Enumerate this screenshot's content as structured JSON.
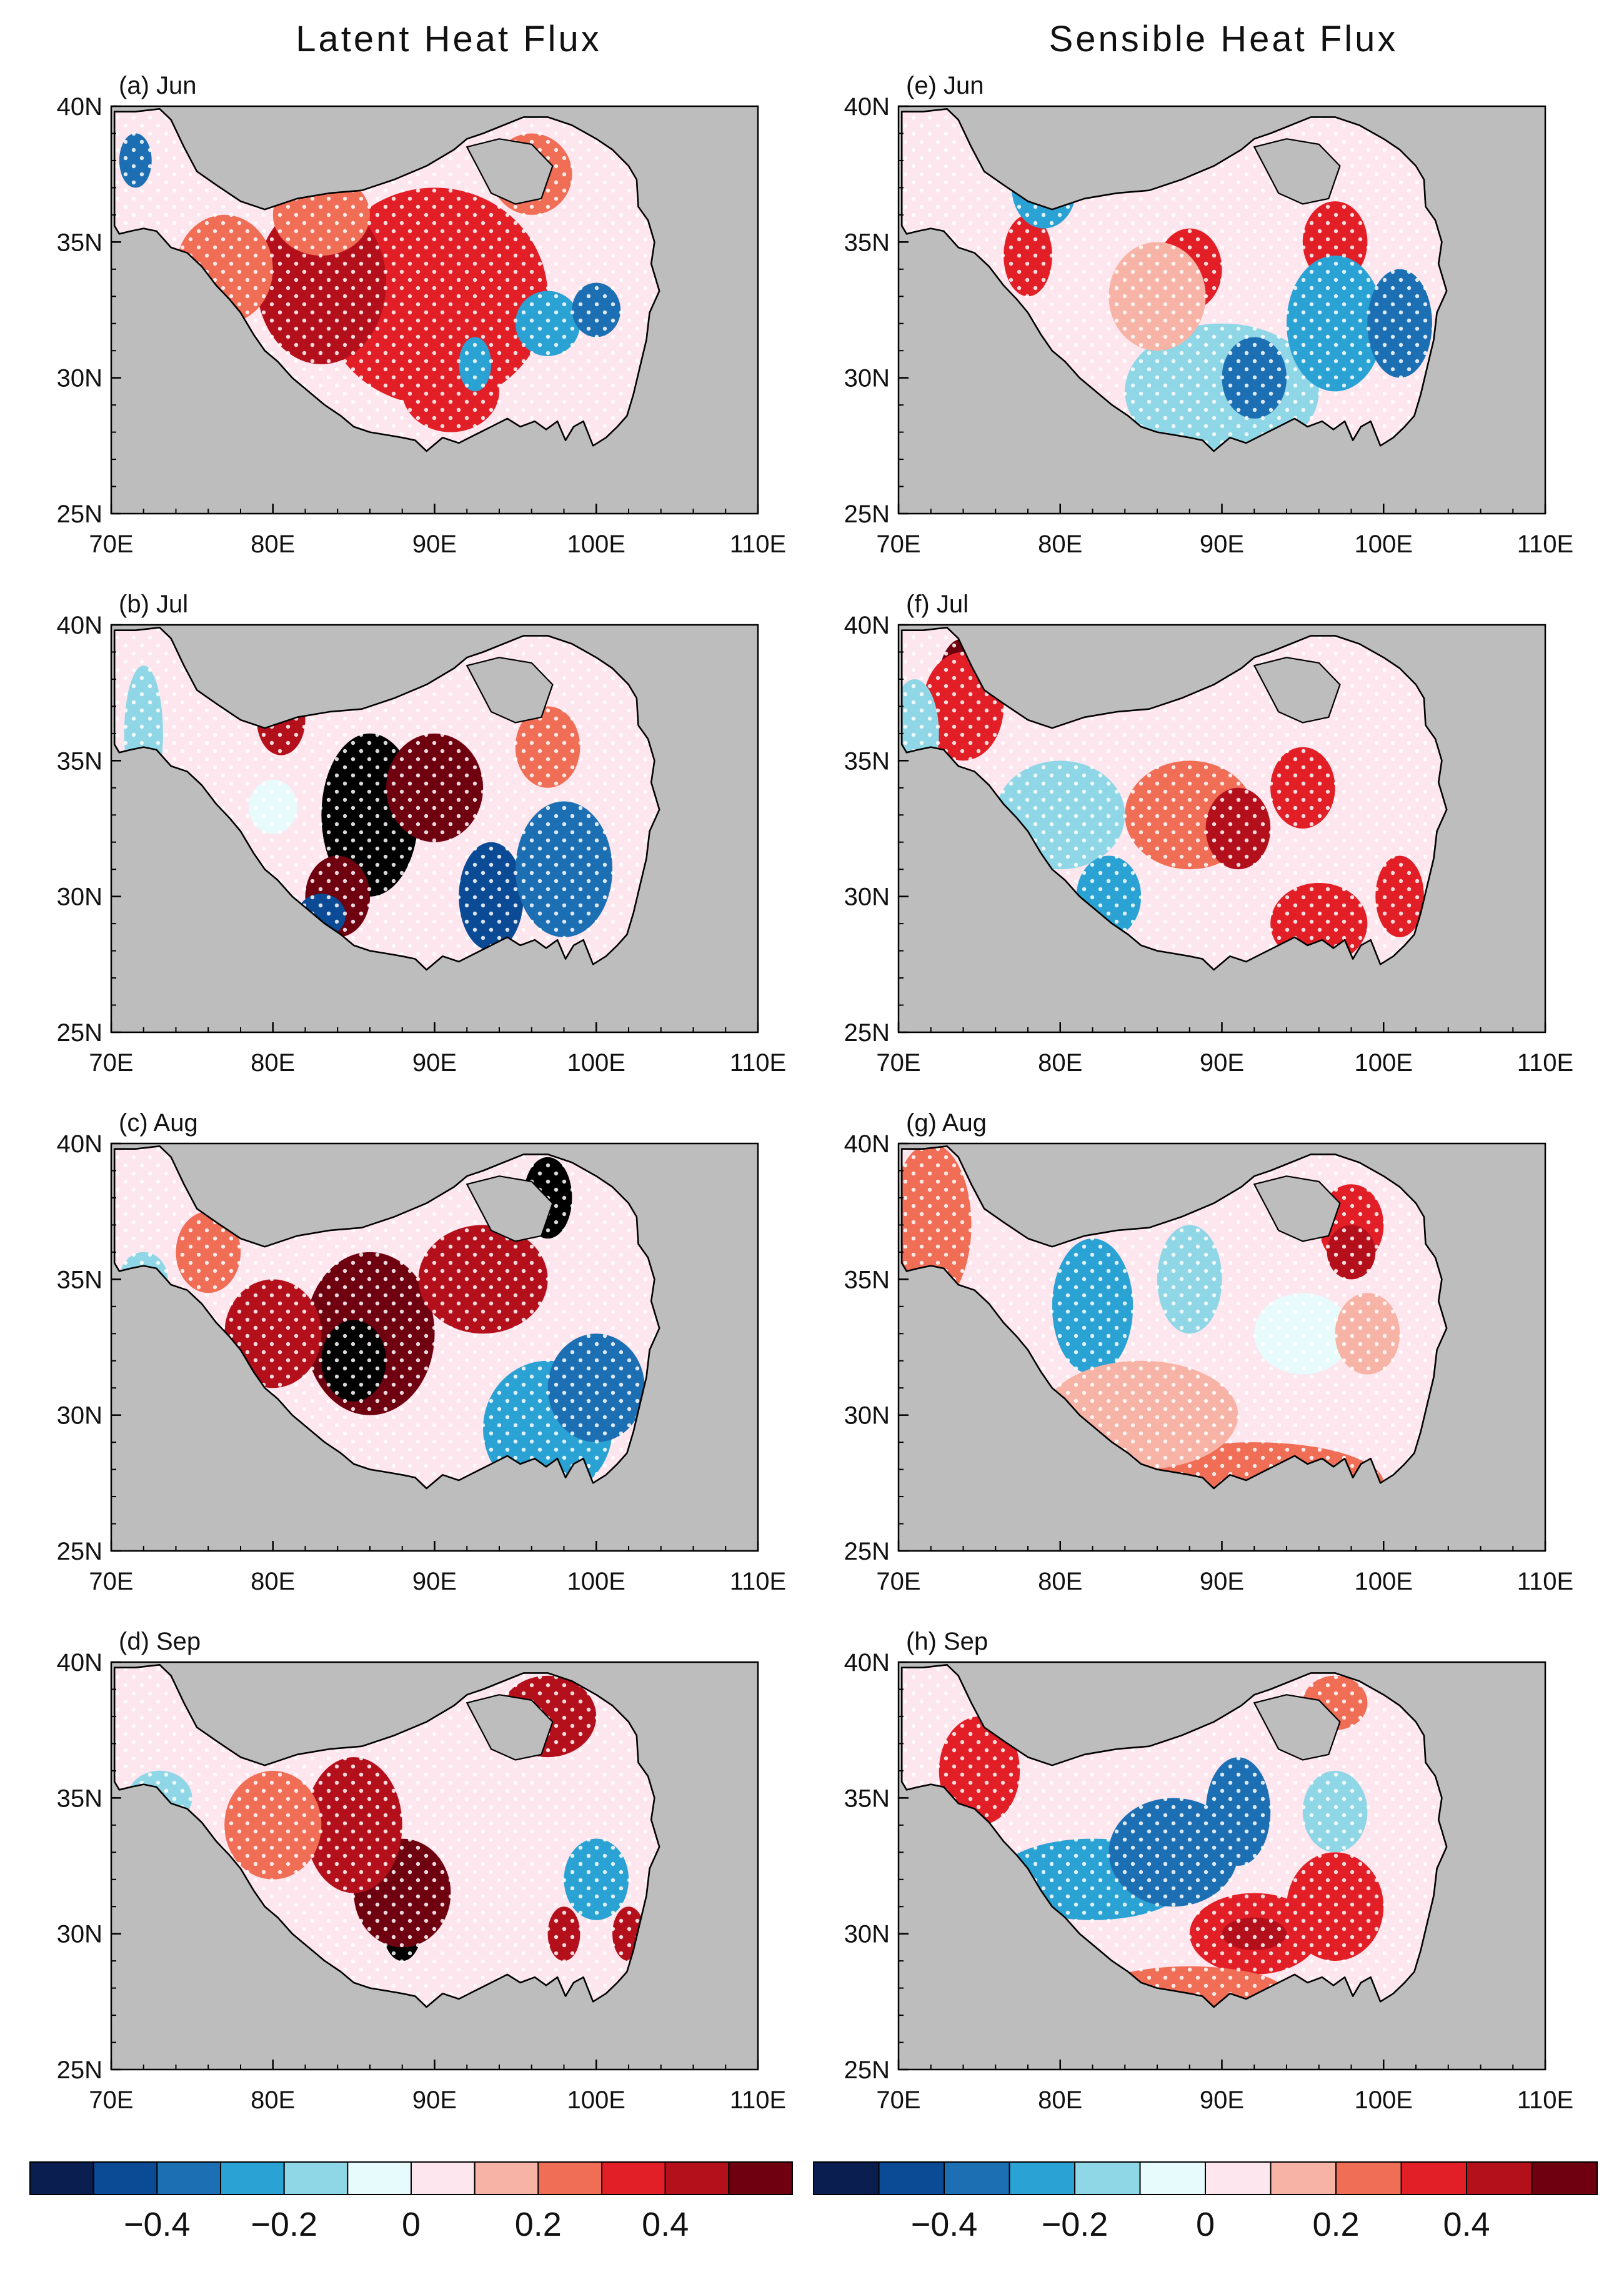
{
  "columns": [
    {
      "title": "Latent Heat Flux"
    },
    {
      "title": "Sensible Heat Flux"
    }
  ],
  "panels": [
    {
      "label": "(a) Jun",
      "col": 0,
      "row": 0
    },
    {
      "label": "(b) Jul",
      "col": 0,
      "row": 1
    },
    {
      "label": "(c) Aug",
      "col": 0,
      "row": 2
    },
    {
      "label": "(d) Sep",
      "col": 0,
      "row": 3
    },
    {
      "label": "(e) Jun",
      "col": 1,
      "row": 0
    },
    {
      "label": "(f) Jul",
      "col": 1,
      "row": 1
    },
    {
      "label": "(g) Aug",
      "col": 1,
      "row": 2
    },
    {
      "label": "(h) Sep",
      "col": 1,
      "row": 3
    }
  ],
  "axes": {
    "lon_range": [
      70,
      110
    ],
    "lat_range": [
      25,
      40
    ],
    "x_ticks": [
      "70E",
      "80E",
      "90E",
      "100E",
      "110E"
    ],
    "y_ticks": [
      "40N",
      "35N",
      "30N",
      "25N"
    ],
    "x_tick_values": [
      70,
      80,
      90,
      100,
      110
    ],
    "y_tick_values": [
      40,
      35,
      30,
      25
    ]
  },
  "colorbar": {
    "colors": [
      "#0a1f4f",
      "#0b4a94",
      "#1d6fb3",
      "#2aa2d4",
      "#8fd7e6",
      "#e8fbfc",
      "#fde6ee",
      "#f7b3a6",
      "#f06d56",
      "#e21f26",
      "#b3101c",
      "#6e0010"
    ],
    "tick_labels": [
      "−0.4",
      "−0.2",
      "0",
      "0.2",
      "0.4"
    ],
    "tick_positions": [
      2,
      4,
      6,
      8,
      10
    ]
  },
  "colors": {
    "land_mask": "#bdbdbd",
    "outline": "#000000",
    "stipple": "#ffffff"
  },
  "blobs": [
    [
      [
        [
          90,
          33,
          7,
          4,
          9
        ],
        [
          83,
          33.5,
          4,
          3,
          10
        ],
        [
          91,
          29.5,
          3,
          1.5,
          9
        ],
        [
          83,
          36,
          3,
          1.5,
          8
        ],
        [
          77,
          34,
          3,
          2,
          8
        ],
        [
          96,
          37.5,
          2.5,
          1.5,
          8
        ],
        [
          97,
          32,
          2,
          1.2,
          3
        ],
        [
          100,
          32.5,
          1.5,
          1,
          2
        ],
        [
          92.5,
          30.5,
          1,
          1,
          3
        ],
        [
          71.5,
          38,
          1,
          1,
          2
        ]
      ],
      [
        [
          86,
          33,
          3,
          3,
          12
        ],
        [
          90,
          34,
          3,
          2,
          11
        ],
        [
          84,
          30,
          2,
          1.5,
          11
        ],
        [
          80.5,
          36.5,
          1.5,
          1.3,
          10
        ],
        [
          83,
          29.3,
          1.5,
          0.8,
          1
        ],
        [
          93.5,
          30,
          2,
          2,
          1
        ],
        [
          98,
          31,
          3,
          2.5,
          2
        ],
        [
          97,
          35.5,
          2,
          1.5,
          8
        ],
        [
          72,
          36,
          1.2,
          2.5,
          4
        ],
        [
          80,
          33.3,
          1.5,
          1,
          5
        ]
      ],
      [
        [
          86,
          33,
          4,
          3,
          11
        ],
        [
          85,
          32,
          2,
          1.5,
          12
        ],
        [
          97,
          38,
          1.5,
          1.5,
          12
        ],
        [
          93,
          35,
          4,
          2,
          10
        ],
        [
          80,
          33,
          3,
          2,
          10
        ],
        [
          97,
          29.5,
          4,
          2.5,
          3
        ],
        [
          100,
          31,
          3,
          2,
          2
        ],
        [
          76,
          36,
          2,
          1.5,
          8
        ],
        [
          72,
          35,
          1.5,
          1,
          4
        ]
      ],
      [
        [
          88,
          30.2,
          1.2,
          1.2,
          12
        ],
        [
          88,
          31.5,
          3,
          2,
          11
        ],
        [
          85,
          34,
          3,
          2.5,
          10
        ],
        [
          97,
          38,
          3,
          1.5,
          10
        ],
        [
          80,
          34,
          3,
          2,
          8
        ],
        [
          73,
          35,
          2,
          1,
          4
        ],
        [
          100,
          32,
          2,
          1.5,
          3
        ],
        [
          98,
          30,
          1,
          1,
          10
        ],
        [
          102,
          30,
          1,
          1,
          10
        ]
      ],
      [
        [
          78,
          34.5,
          1.5,
          1.5,
          9
        ],
        [
          88,
          34,
          2,
          1.5,
          9
        ],
        [
          97,
          35,
          2,
          1.5,
          9
        ],
        [
          90,
          29.5,
          6,
          2.5,
          4
        ],
        [
          97,
          32,
          3,
          2.5,
          3
        ],
        [
          101,
          32,
          2,
          2,
          2
        ],
        [
          92,
          30,
          2,
          1.5,
          2
        ],
        [
          79,
          37,
          2,
          1.5,
          3
        ],
        [
          86,
          33,
          3,
          2,
          7
        ]
      ],
      [
        [
          74,
          38,
          1.5,
          1.5,
          11
        ],
        [
          74,
          37,
          2.5,
          2,
          9
        ],
        [
          88,
          33,
          4,
          2,
          8
        ],
        [
          91,
          32.5,
          2,
          1.5,
          10
        ],
        [
          95,
          34,
          2,
          1.5,
          9
        ],
        [
          96,
          29,
          3,
          1.5,
          9
        ],
        [
          80,
          33,
          4,
          2,
          4
        ],
        [
          83,
          30,
          2,
          1.5,
          3
        ],
        [
          71,
          36,
          1.5,
          2,
          4
        ],
        [
          101,
          30,
          1.5,
          1.5,
          9
        ]
      ],
      [
        [
          82,
          34,
          2.5,
          2.5,
          3
        ],
        [
          88,
          35,
          2,
          2,
          4
        ],
        [
          98,
          37,
          2,
          1.5,
          9
        ],
        [
          98,
          36,
          1.5,
          1,
          10
        ],
        [
          95,
          33,
          3,
          1.5,
          5
        ],
        [
          92,
          27.5,
          8,
          1.5,
          8
        ],
        [
          85,
          30,
          6,
          2,
          7
        ],
        [
          72,
          37,
          2.5,
          3,
          8
        ],
        [
          99,
          33,
          2,
          1.5,
          7
        ]
      ],
      [
        [
          82,
          32,
          6,
          1.5,
          3
        ],
        [
          87,
          33,
          4,
          2,
          2
        ],
        [
          91,
          34.5,
          2,
          2,
          2
        ],
        [
          92,
          30,
          4,
          1.5,
          9
        ],
        [
          92,
          30,
          2,
          0.6,
          10
        ],
        [
          97,
          31,
          3,
          2,
          9
        ],
        [
          75,
          36,
          2.5,
          2,
          9
        ],
        [
          88,
          27.8,
          6,
          1,
          8
        ],
        [
          97,
          38.5,
          2,
          1,
          8
        ],
        [
          97,
          34.5,
          2,
          1.5,
          4
        ]
      ]
    ]
  ]
}
